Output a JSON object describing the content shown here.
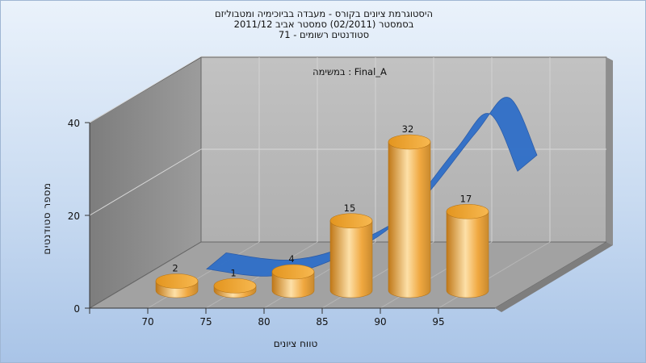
{
  "header": {
    "title_line1": "היסטוגרמת ציונים בקורס - מעבדה בביוכימיה ומטבוליזם",
    "title_line2": "בסמסטר  (02/2011)  סמסטר אביב 2011/12",
    "title_line3": "סטודנטים רשומים - 71"
  },
  "chart_data": {
    "type": "bar",
    "subtitle": "במשימה : Final_A",
    "xlabel": "טווח ציונים",
    "ylabel": "מספר סטודנטים",
    "categories": [
      "70",
      "75",
      "80",
      "85",
      "90",
      "95"
    ],
    "x_ticks": [
      "70",
      "75",
      "80",
      "85",
      "90",
      "95"
    ],
    "y_ticks": [
      "0",
      "20",
      "40"
    ],
    "ylim": [
      0,
      40
    ],
    "series": [
      {
        "values": [
          2,
          1,
          4,
          15,
          32,
          17
        ]
      }
    ],
    "trend_curve": true,
    "grid": true,
    "colors": {
      "bar": "#f0a840",
      "bar_light": "#fde0a8",
      "bar_dark": "#c07818",
      "curve": "#2f6fc8",
      "wall_left": "#8d8d8d",
      "wall_back": "#b9b9b9",
      "floor": "#a0a0a0"
    }
  }
}
